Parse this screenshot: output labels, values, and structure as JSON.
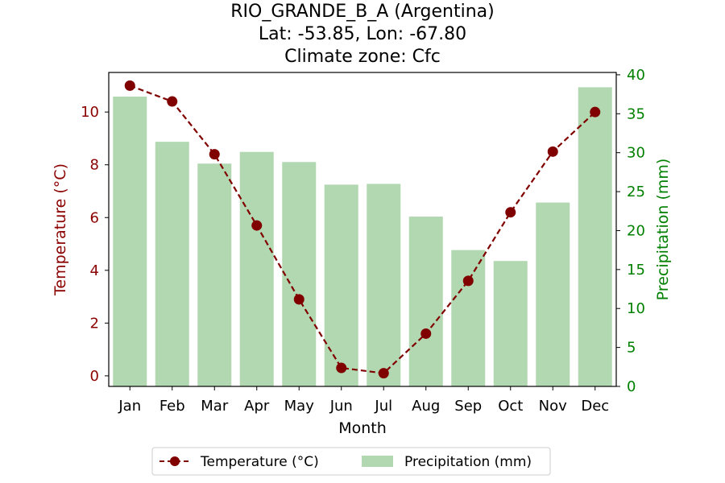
{
  "chart_data": {
    "type": "bar+line",
    "title_lines": [
      "RIO_GRANDE_B_A (Argentina)",
      "Lat: -53.85, Lon: -67.80",
      "Climate zone: Cfc"
    ],
    "xlabel": "Month",
    "ylabel_left": "Temperature (°C)",
    "ylabel_right": "Precipitation (mm)",
    "categories": [
      "Jan",
      "Feb",
      "Mar",
      "Apr",
      "May",
      "Jun",
      "Jul",
      "Aug",
      "Sep",
      "Oct",
      "Nov",
      "Dec"
    ],
    "temperature": {
      "name": "Temperature (°C)",
      "values": [
        11.0,
        10.4,
        8.4,
        5.7,
        2.9,
        0.3,
        0.1,
        1.6,
        3.6,
        6.2,
        8.5,
        10.0
      ],
      "color": "#800000",
      "ylim": [
        -0.4,
        11.5
      ],
      "ticks": [
        0,
        2,
        4,
        6,
        8,
        10
      ]
    },
    "precipitation": {
      "name": "Precipitation (mm)",
      "values": [
        37.2,
        31.4,
        28.6,
        30.1,
        28.8,
        25.9,
        26.0,
        21.8,
        17.5,
        16.1,
        23.6,
        38.4
      ],
      "color": "#b2d8b2",
      "ylim": [
        0,
        40.3
      ],
      "ticks": [
        0,
        5,
        10,
        15,
        20,
        25,
        30,
        35,
        40
      ]
    },
    "axis_colors": {
      "left": "#8b0000",
      "right": "#008000"
    },
    "legend": {
      "placement": "bottom-center",
      "entries": [
        "Temperature (°C)",
        "Precipitation (mm)"
      ]
    },
    "grid": false
  }
}
